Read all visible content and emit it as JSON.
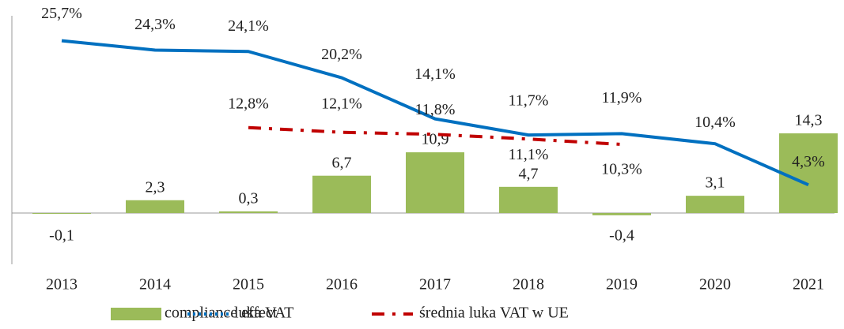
{
  "chart_data": {
    "type": "bar-line",
    "categories": [
      "2013",
      "2014",
      "2015",
      "2016",
      "2017",
      "2018",
      "2019",
      "2020",
      "2021"
    ],
    "ylim": [
      -9.2,
      35.4
    ],
    "y2lim": [
      -7.5,
      29.4
    ],
    "series": [
      {
        "name": "compliance effect",
        "type": "bar",
        "color": "#9bbb59",
        "values": [
          -0.1,
          2.3,
          0.3,
          6.7,
          10.9,
          4.7,
          -0.4,
          3.1,
          14.3
        ],
        "value_labels": [
          "-0,1",
          "2,3",
          "0,3",
          "6,7",
          "10,9",
          "4,7",
          "-0,4",
          "3,1",
          "14,3"
        ]
      },
      {
        "name": "luka VAT",
        "type": "line",
        "axis": "y2",
        "color": "#0070c0",
        "values": [
          25.7,
          24.3,
          24.1,
          20.2,
          14.1,
          11.7,
          11.9,
          10.4,
          4.3
        ],
        "value_labels": [
          "25,7%",
          "24,3%",
          "24,1%",
          "20,2%",
          "14,1%",
          "11,7%",
          "11,9%",
          "10,4%",
          "4,3%"
        ]
      },
      {
        "name": "średnia luka VAT w UE",
        "type": "line",
        "axis": "y2",
        "color": "#c00000",
        "values": [
          null,
          null,
          12.8,
          12.1,
          11.8,
          11.1,
          10.3,
          null,
          null
        ],
        "value_labels": [
          null,
          null,
          "12,8%",
          "12,1%",
          "11,8%",
          "11,1%",
          "10,3%",
          null,
          null
        ]
      }
    ]
  }
}
